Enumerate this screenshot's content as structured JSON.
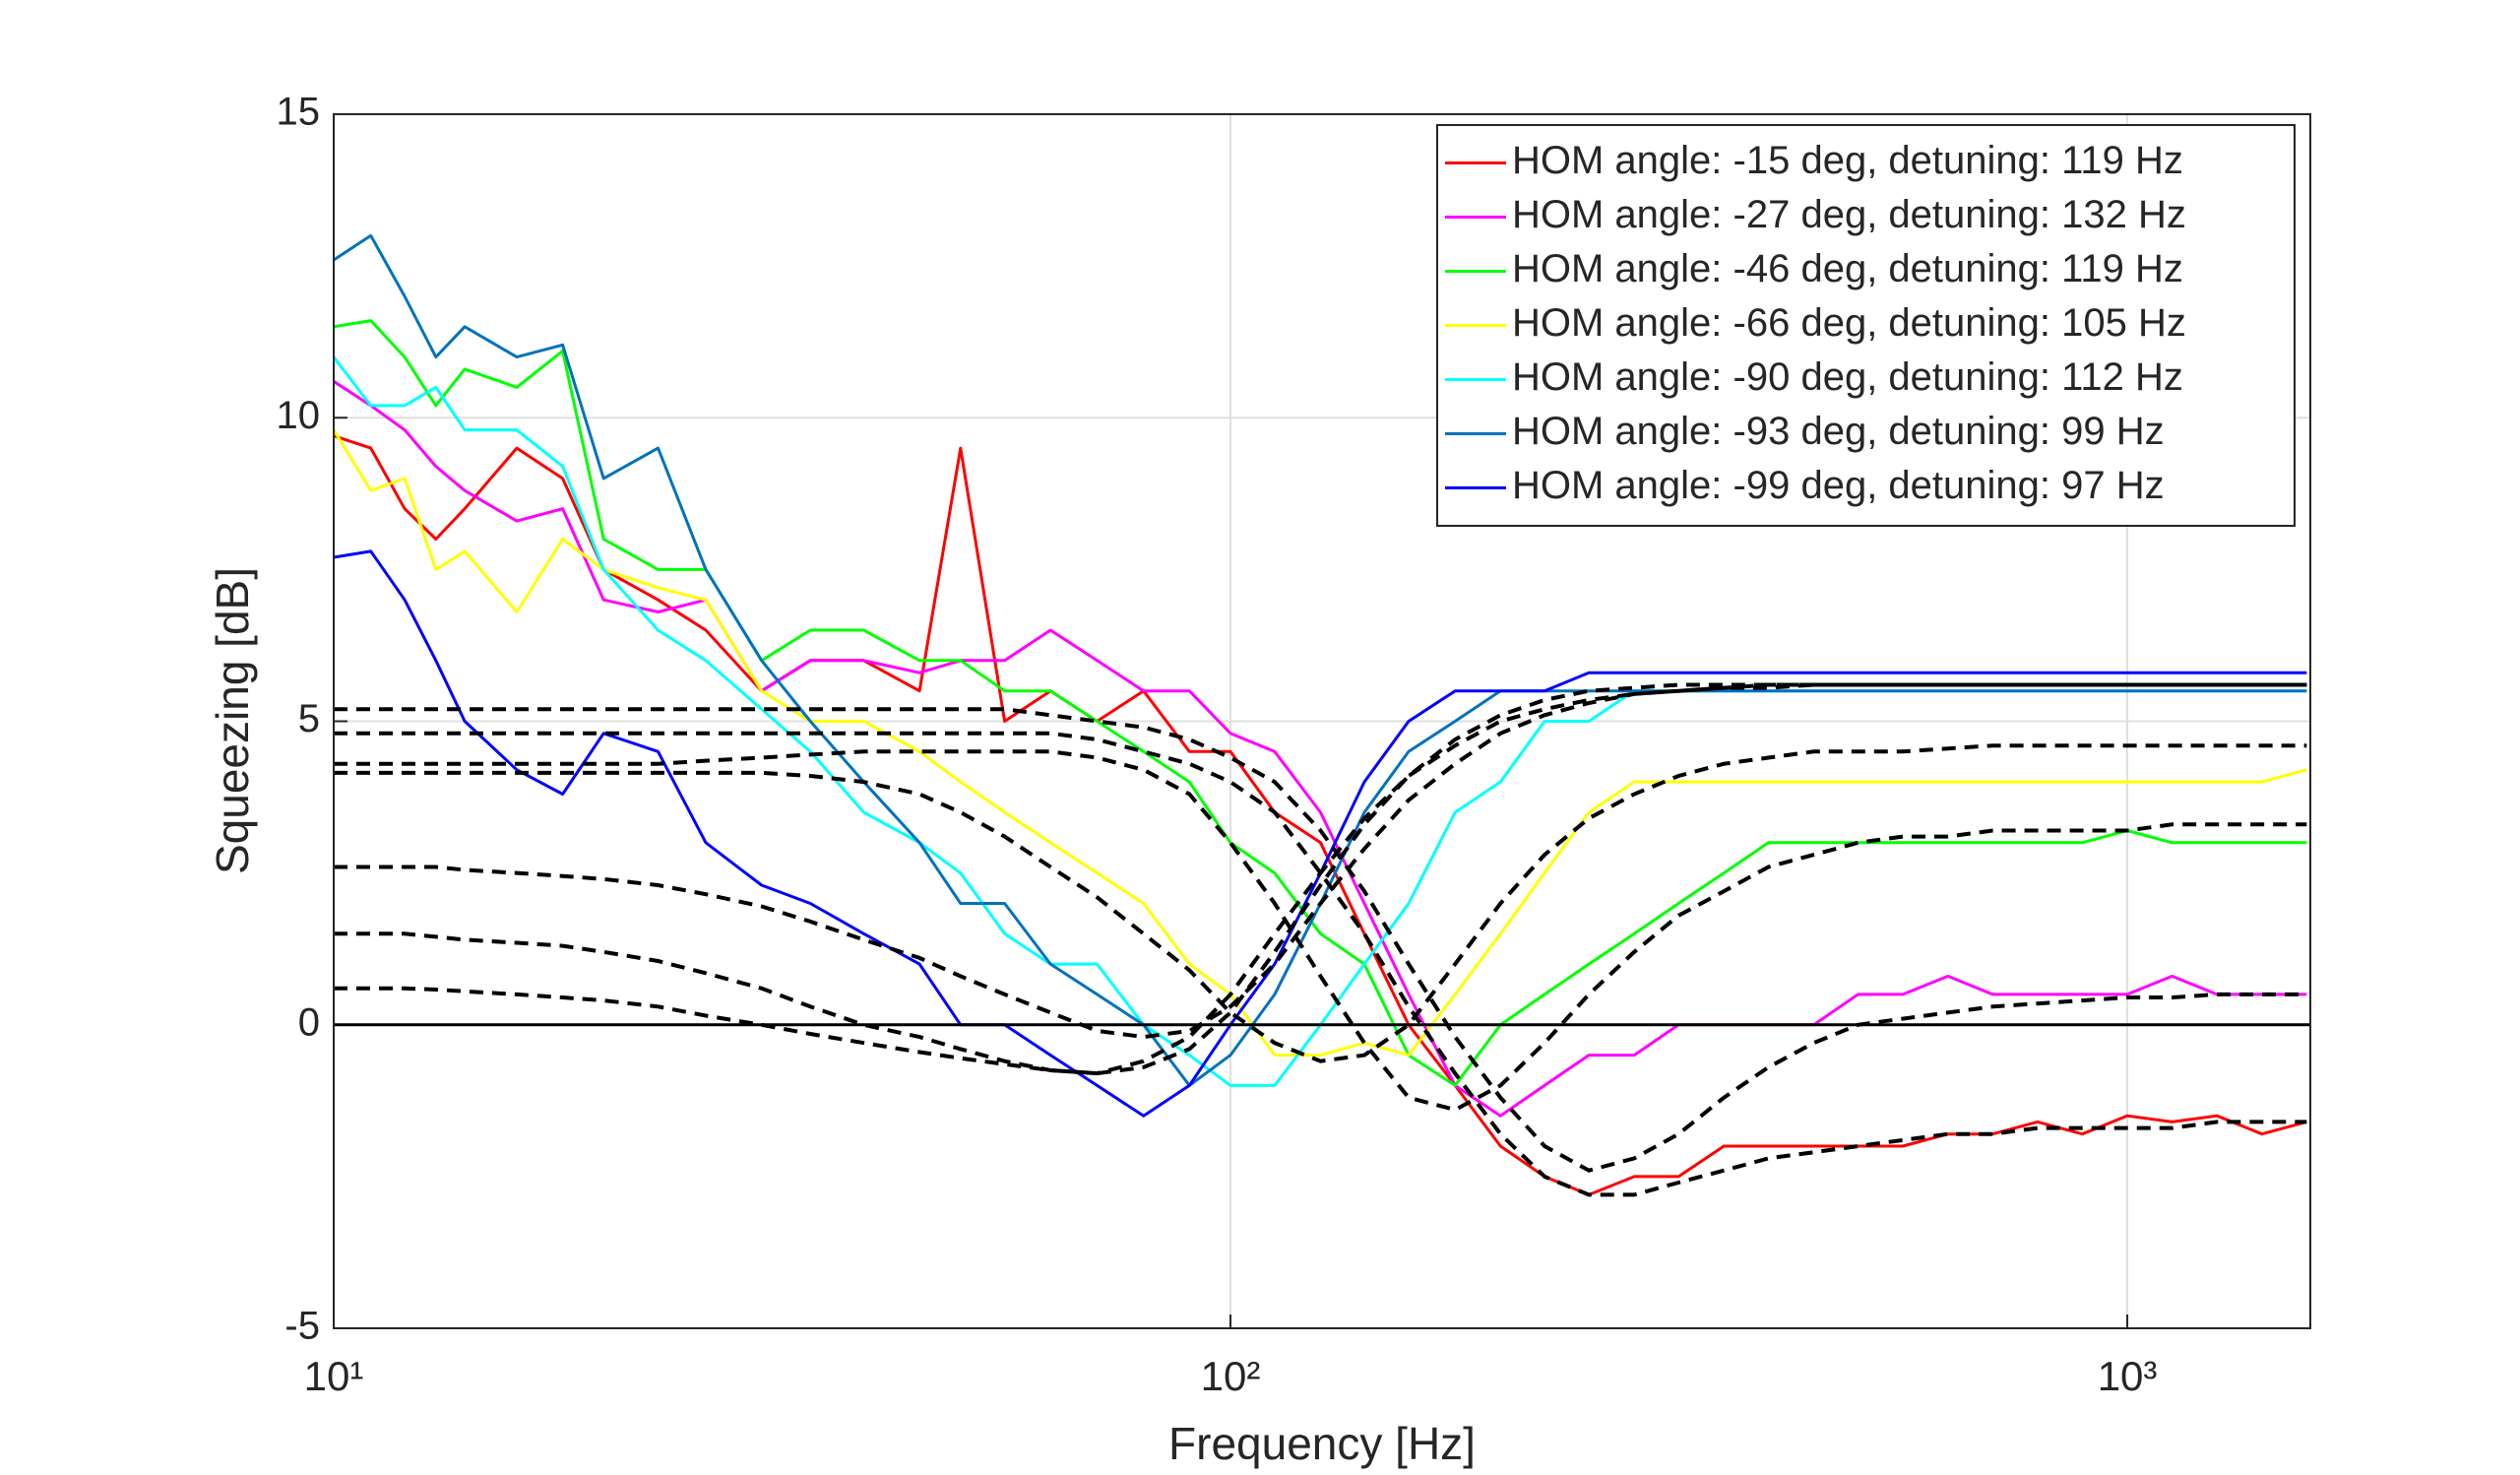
{
  "chart_data": {
    "type": "line",
    "xlabel": "Frequency [Hz]",
    "ylabel": "Squeezing [dB]",
    "x": [
      10,
      11,
      12,
      13,
      14,
      16,
      18,
      20,
      23,
      26,
      30,
      34,
      39,
      45,
      50,
      56,
      63,
      71,
      80,
      90,
      100,
      112,
      126,
      141,
      158,
      178,
      200,
      224,
      251,
      282,
      316,
      355,
      398,
      447,
      501,
      562,
      631,
      708,
      794,
      891,
      1000,
      1122,
      1259,
      1413,
      1585
    ],
    "xlim": [
      10,
      1600
    ],
    "ylim": [
      -5,
      15
    ],
    "xscale": "log",
    "xticks": [
      {
        "value": 10,
        "label": "10¹"
      },
      {
        "value": 100,
        "label": "10²"
      },
      {
        "value": 1000,
        "label": "10³"
      }
    ],
    "yticks": [
      -5,
      0,
      5,
      10,
      15
    ],
    "grid": true,
    "legend": "upper right",
    "hline": 0,
    "series": [
      {
        "name": "HOM angle: -15 deg, detuning: 119 Hz",
        "color": "#ff0000",
        "values": [
          9.7,
          9.5,
          8.5,
          8,
          8.5,
          9.5,
          9,
          7.5,
          7,
          6.5,
          5.5,
          6,
          6,
          5.5,
          9.5,
          5,
          5.5,
          5,
          5.5,
          4.5,
          4.5,
          3.5,
          3,
          1.5,
          0,
          -1,
          -2,
          -2.5,
          -2.8,
          -2.5,
          -2.5,
          -2,
          -2,
          -2,
          -2,
          -2,
          -1.8,
          -1.8,
          -1.6,
          -1.8,
          -1.5,
          -1.6,
          -1.5,
          -1.8,
          -1.6
        ]
      },
      {
        "name": "HOM angle: -27 deg, detuning: 132 Hz",
        "color": "#ff00ff",
        "values": [
          10.6,
          10.2,
          9.8,
          9.2,
          8.8,
          8.3,
          8.5,
          7,
          6.8,
          7,
          5.5,
          6,
          6,
          5.8,
          6,
          6,
          6.5,
          6,
          5.5,
          5.5,
          4.8,
          4.5,
          3.5,
          2,
          0.5,
          -1,
          -1.5,
          -1,
          -0.5,
          -0.5,
          0,
          0,
          0,
          0,
          0.5,
          0.5,
          0.8,
          0.5,
          0.5,
          0.5,
          0.5,
          0.8,
          0.5,
          0.5,
          0.5
        ]
      },
      {
        "name": "HOM angle: -46 deg, detuning: 119 Hz",
        "color": "#00ff00",
        "values": [
          11.5,
          11.6,
          11,
          10.2,
          10.8,
          10.5,
          11.1,
          8,
          7.5,
          7.5,
          6,
          6.5,
          6.5,
          6,
          6,
          5.5,
          5.5,
          5,
          4.5,
          4,
          3,
          2.5,
          1.5,
          1,
          -0.5,
          -1,
          0,
          0.5,
          1,
          1.5,
          2,
          2.5,
          3,
          3,
          3,
          3,
          3,
          3,
          3,
          3,
          3.2,
          3,
          3,
          3,
          3
        ]
      },
      {
        "name": "HOM angle: -66 deg, detuning: 105 Hz",
        "color": "#ffff00",
        "values": [
          9.8,
          8.8,
          9,
          7.5,
          7.8,
          6.8,
          8,
          7.5,
          7.2,
          7,
          5.5,
          5,
          5,
          4.5,
          4,
          3.5,
          3,
          2.5,
          2,
          1,
          0.5,
          -0.5,
          -0.5,
          -0.3,
          -0.5,
          0.5,
          1.5,
          2.5,
          3.5,
          4,
          4,
          4,
          4,
          4,
          4,
          4,
          4,
          4,
          4,
          4,
          4,
          4,
          4,
          4,
          4.2
        ]
      },
      {
        "name": "HOM angle: -90 deg, detuning: 112 Hz",
        "color": "#00ffff",
        "values": [
          11,
          10.2,
          10.2,
          10.5,
          9.8,
          9.8,
          9.2,
          7.5,
          6.5,
          6,
          5.2,
          4.5,
          3.5,
          3,
          2.5,
          1.5,
          1,
          1,
          0,
          -0.5,
          -1,
          -1,
          0,
          1,
          2,
          3.5,
          4,
          5,
          5,
          5.5,
          5.5,
          5.5,
          5.5,
          5.5,
          5.5,
          5.5,
          5.5,
          5.5,
          5.5,
          5.5,
          5.5,
          5.5,
          5.5,
          5.5,
          5.5
        ]
      },
      {
        "name": "HOM angle: -93 deg, detuning: 99 Hz",
        "color": "#0072bd",
        "values": [
          12.6,
          13,
          12,
          11,
          11.5,
          11,
          11.2,
          9,
          9.5,
          7.5,
          6,
          5,
          4,
          3,
          2,
          2,
          1,
          0.5,
          0,
          -1,
          -0.5,
          0.5,
          2,
          3.5,
          4.5,
          5,
          5.5,
          5.5,
          5.5,
          5.5,
          5.5,
          5.5,
          5.5,
          5.5,
          5.5,
          5.5,
          5.5,
          5.5,
          5.5,
          5.5,
          5.5,
          5.5,
          5.5,
          5.5,
          5.5
        ]
      },
      {
        "name": "HOM angle: -99 deg, detuning: 97 Hz",
        "color": "#0000ff",
        "values": [
          7.7,
          7.8,
          7,
          6,
          5,
          4.2,
          3.8,
          4.8,
          4.5,
          3,
          2.3,
          2,
          1.5,
          1,
          0,
          0,
          -0.5,
          -1,
          -1.5,
          -1,
          0,
          1,
          2.5,
          4,
          5,
          5.5,
          5.5,
          5.5,
          5.8,
          5.8,
          5.8,
          5.8,
          5.8,
          5.8,
          5.8,
          5.8,
          5.8,
          5.8,
          5.8,
          5.8,
          5.8,
          5.8,
          5.8,
          5.8,
          5.8
        ]
      }
    ],
    "fits": [
      {
        "color": "#000000",
        "values": [
          4.8,
          4.8,
          4.8,
          4.8,
          4.8,
          4.8,
          4.8,
          4.8,
          4.8,
          4.8,
          4.8,
          4.8,
          4.8,
          4.8,
          4.8,
          4.8,
          4.8,
          4.7,
          4.5,
          4.3,
          4,
          3.5,
          2.5,
          1.5,
          0.3,
          -0.8,
          -1.8,
          -2.5,
          -2.8,
          -2.8,
          -2.6,
          -2.4,
          -2.2,
          -2.1,
          -2,
          -1.9,
          -1.8,
          -1.8,
          -1.7,
          -1.7,
          -1.7,
          -1.7,
          -1.6,
          -1.6,
          -1.6
        ]
      },
      {
        "color": "#000000",
        "values": [
          5.2,
          5.2,
          5.2,
          5.2,
          5.2,
          5.2,
          5.2,
          5.2,
          5.2,
          5.2,
          5.2,
          5.2,
          5.2,
          5.2,
          5.2,
          5.2,
          5.1,
          5,
          4.9,
          4.7,
          4.4,
          4,
          3.2,
          2.2,
          1,
          -0.2,
          -1.2,
          -2,
          -2.4,
          -2.2,
          -1.8,
          -1.2,
          -0.7,
          -0.3,
          0,
          0.1,
          0.2,
          0.3,
          0.35,
          0.4,
          0.45,
          0.45,
          0.5,
          0.5,
          0.5
        ]
      },
      {
        "color": "#000000",
        "values": [
          4.3,
          4.3,
          4.3,
          4.3,
          4.3,
          4.3,
          4.3,
          4.3,
          4.3,
          4.35,
          4.4,
          4.45,
          4.5,
          4.5,
          4.5,
          4.5,
          4.5,
          4.4,
          4.2,
          3.8,
          3,
          2,
          0.8,
          -0.3,
          -1.2,
          -1.4,
          -1,
          -0.3,
          0.5,
          1.2,
          1.8,
          2.2,
          2.6,
          2.8,
          3,
          3.1,
          3.1,
          3.2,
          3.2,
          3.2,
          3.2,
          3.3,
          3.3,
          3.3,
          3.3
        ]
      },
      {
        "color": "#000000",
        "values": [
          4.15,
          4.15,
          4.15,
          4.15,
          4.15,
          4.15,
          4.15,
          4.15,
          4.15,
          4.15,
          4.15,
          4.1,
          4,
          3.8,
          3.5,
          3.1,
          2.6,
          2.1,
          1.5,
          0.9,
          0.2,
          -0.3,
          -0.6,
          -0.5,
          0,
          1,
          2,
          2.8,
          3.4,
          3.8,
          4.1,
          4.3,
          4.4,
          4.5,
          4.5,
          4.5,
          4.55,
          4.6,
          4.6,
          4.6,
          4.6,
          4.6,
          4.6,
          4.6,
          4.6
        ]
      },
      {
        "color": "#000000",
        "values": [
          2.6,
          2.6,
          2.6,
          2.6,
          2.55,
          2.5,
          2.45,
          2.4,
          2.3,
          2.15,
          1.95,
          1.7,
          1.4,
          1.1,
          0.8,
          0.5,
          0.2,
          -0.1,
          -0.2,
          -0.1,
          0.3,
          1,
          2,
          2.9,
          3.7,
          4.3,
          4.8,
          5.1,
          5.3,
          5.45,
          5.5,
          5.55,
          5.6,
          5.6,
          5.6,
          5.6,
          5.6,
          5.6,
          5.6,
          5.6,
          5.6,
          5.6,
          5.6,
          5.6,
          5.6
        ]
      },
      {
        "color": "#000000",
        "values": [
          1.5,
          1.5,
          1.5,
          1.45,
          1.4,
          1.35,
          1.3,
          1.2,
          1.05,
          0.85,
          0.6,
          0.3,
          0,
          -0.2,
          -0.4,
          -0.6,
          -0.75,
          -0.8,
          -0.6,
          -0.2,
          0.5,
          1.5,
          2.5,
          3.4,
          4.1,
          4.6,
          5,
          5.2,
          5.35,
          5.45,
          5.5,
          5.55,
          5.55,
          5.6,
          5.6,
          5.6,
          5.6,
          5.6,
          5.6,
          5.6,
          5.6,
          5.6,
          5.6,
          5.6,
          5.6
        ]
      },
      {
        "color": "#000000",
        "values": [
          0.6,
          0.6,
          0.6,
          0.58,
          0.55,
          0.5,
          0.45,
          0.4,
          0.3,
          0.15,
          0,
          -0.15,
          -0.3,
          -0.45,
          -0.55,
          -0.65,
          -0.75,
          -0.8,
          -0.7,
          -0.4,
          0.2,
          1.2,
          2.3,
          3.3,
          4.1,
          4.7,
          5.1,
          5.35,
          5.5,
          5.55,
          5.6,
          5.6,
          5.6,
          5.6,
          5.6,
          5.6,
          5.6,
          5.6,
          5.6,
          5.6,
          5.6,
          5.6,
          5.6,
          5.6,
          5.6
        ]
      }
    ]
  }
}
